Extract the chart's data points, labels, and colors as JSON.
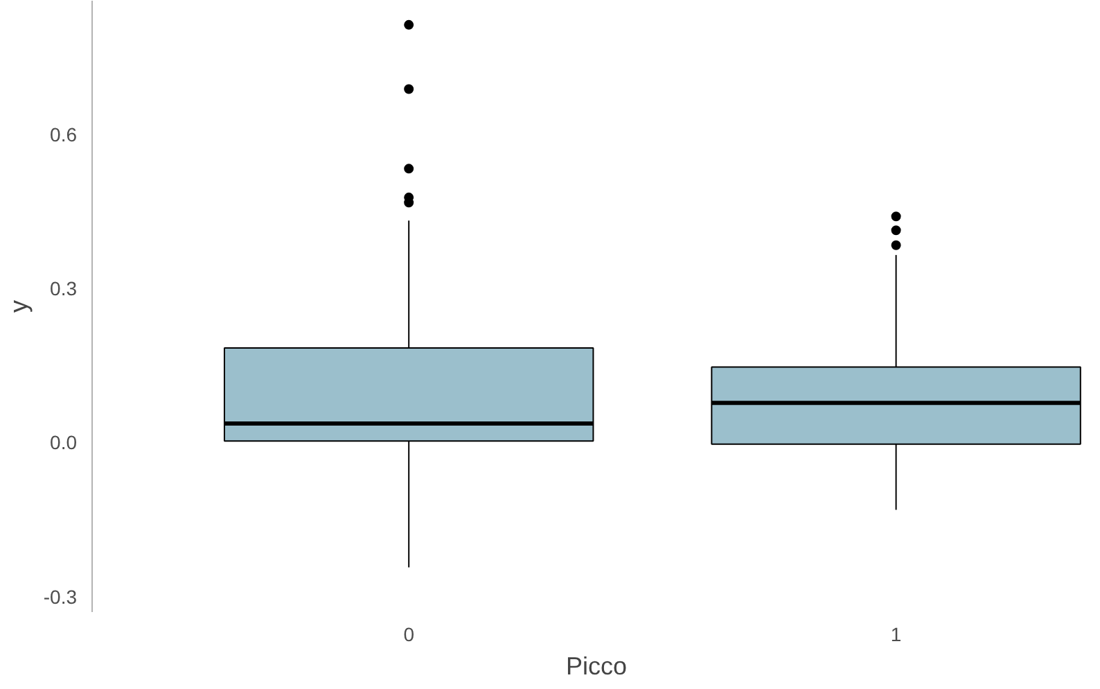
{
  "chart_data": {
    "type": "box",
    "xlabel": "Picco",
    "ylabel": "y",
    "categories": [
      "0",
      "1"
    ],
    "color": "#9bbfcc",
    "boxes": [
      {
        "low": -0.243,
        "q1": 0.003,
        "median": 0.037,
        "q3": 0.184,
        "high": 0.432,
        "outliers": [
          0.813,
          0.688,
          0.533,
          0.477,
          0.467
        ]
      },
      {
        "low": -0.131,
        "q1": -0.003,
        "median": 0.077,
        "q3": 0.147,
        "high": 0.365,
        "outliers": [
          0.44,
          0.413,
          0.384
        ]
      }
    ],
    "ylim": [
      -0.33,
      0.86
    ],
    "yticks": [
      {
        "value": -0.3,
        "label": "-0.3"
      },
      {
        "value": 0,
        "label": "0.0"
      },
      {
        "value": 0.3,
        "label": "0.3"
      },
      {
        "value": 0.6,
        "label": "0.6"
      }
    ],
    "grid": false
  }
}
